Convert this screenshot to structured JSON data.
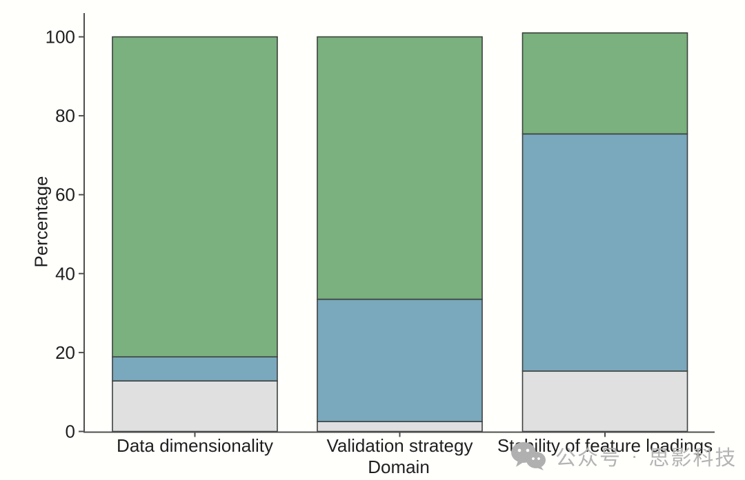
{
  "figure": {
    "background_color": "#fffffc"
  },
  "chart_data": {
    "type": "bar",
    "stacked": true,
    "orientation": "vertical",
    "title": "",
    "xlabel": "Domain",
    "ylabel": "Percentage",
    "categories": [
      "Data dimensionality",
      "Validation strategy",
      "Stability of feature loadings"
    ],
    "series": [
      {
        "name": "bottom segment (light gray)",
        "color": "#e0e0e0",
        "values": [
          12.8,
          2.5,
          15.3
        ]
      },
      {
        "name": "middle segment (blue)",
        "color": "#7aa8bc",
        "values": [
          6.1,
          31.0,
          60.1
        ]
      },
      {
        "name": "top segment (green)",
        "color": "#7ab17e",
        "values": [
          81.1,
          66.5,
          25.6
        ]
      }
    ],
    "ylim": [
      0,
      106
    ],
    "yticks": [
      0,
      20,
      40,
      60,
      80,
      100
    ],
    "grid": false,
    "legend": "none",
    "colors": {
      "axis": "#4d4d4d",
      "segment_border": "#3b403e",
      "tick_label": "#1f1f1f"
    }
  },
  "watermark": {
    "icon": "wechat-icon",
    "prefix": "公众号",
    "separator": "·",
    "brand": "思影科技",
    "color": "#b4b4b4"
  }
}
